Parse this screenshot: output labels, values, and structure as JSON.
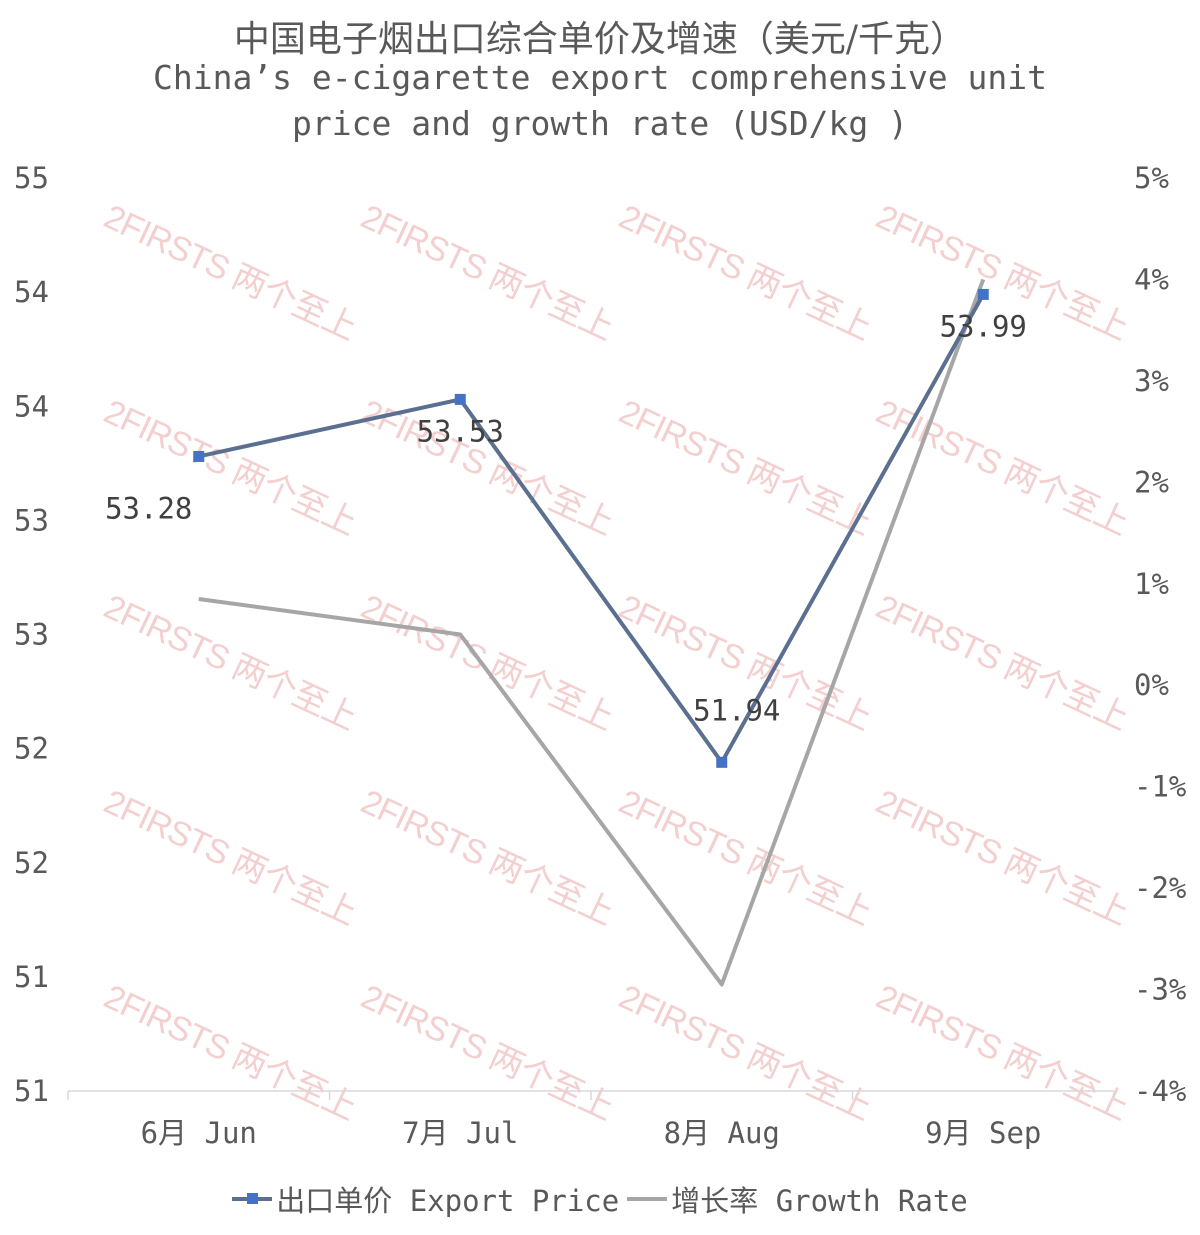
{
  "title_zh": "中国电子烟出口综合单价及增速（美元/千克）",
  "title_en_line1": "China’s e-cigarette export comprehensive unit",
  "title_en_line2": "price and growth rate (USD/kg )",
  "watermark_text": "2FIRSTS 两个至上",
  "colors": {
    "price_line": "#5b7090",
    "price_marker": "#4472c4",
    "growth_line": "#a6a6a6",
    "axis": "#d9d9d9",
    "text": "#595959",
    "watermark": "#f2c4c4"
  },
  "chart_data": {
    "type": "line",
    "categories": [
      "6月 Jun",
      "7月 Jul",
      "8月 Aug",
      "9月 Sep"
    ],
    "series": [
      {
        "name": "出口单价 Export Price",
        "axis": "left",
        "values": [
          53.28,
          53.53,
          51.94,
          53.99
        ],
        "data_labels": [
          "53.28",
          "53.53",
          "51.94",
          "53.99"
        ]
      },
      {
        "name": "增长率 Growth Rate",
        "axis": "right",
        "values": [
          0.85,
          0.5,
          -2.95,
          4.0
        ]
      }
    ],
    "y_left": {
      "range": [
        50.5,
        54.5
      ],
      "tick_values": [
        50.5,
        51,
        51.5,
        52,
        52.5,
        53,
        53.5,
        54,
        54.5
      ],
      "tick_labels": [
        "51",
        "51",
        "52",
        "52",
        "53",
        "53",
        "54",
        "54",
        "55"
      ]
    },
    "y_right": {
      "range": [
        -4,
        5
      ],
      "tick_values": [
        -4,
        -3,
        -2,
        -1,
        0,
        1,
        2,
        3,
        4,
        5
      ],
      "tick_labels": [
        "-4%",
        "-3%",
        "-2%",
        "-1%",
        "0%",
        "1%",
        "2%",
        "3%",
        "4%",
        "5%"
      ]
    },
    "grid": false,
    "legend_position": "bottom"
  }
}
